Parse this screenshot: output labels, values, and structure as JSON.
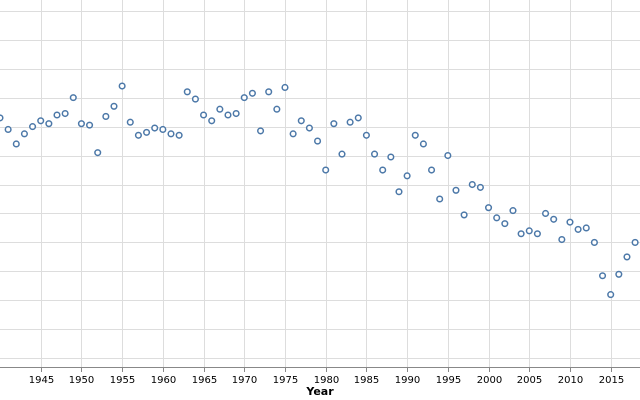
{
  "chart_data": {
    "type": "scatter",
    "xlabel": "Year",
    "ylabel": "",
    "title": "",
    "grid": true,
    "legend": "none",
    "point_color": "#4c78a8",
    "x_ticks": [
      1945,
      1950,
      1955,
      1960,
      1965,
      1970,
      1975,
      1980,
      1985,
      1990,
      1995,
      2000,
      2005,
      2010,
      2015
    ],
    "y_gridlines": [
      0,
      1,
      2,
      3,
      4,
      5,
      6,
      7,
      8,
      9,
      10,
      11,
      12
    ],
    "xlim": [
      1940,
      2018.6
    ],
    "ylim": [
      -0.3,
      12.37
    ],
    "x": [
      1940,
      1941,
      1942,
      1943,
      1944,
      1945,
      1946,
      1947,
      1948,
      1949,
      1950,
      1951,
      1952,
      1953,
      1954,
      1955,
      1956,
      1957,
      1958,
      1959,
      1960,
      1961,
      1962,
      1963,
      1964,
      1965,
      1966,
      1967,
      1968,
      1969,
      1970,
      1971,
      1972,
      1973,
      1974,
      1975,
      1976,
      1977,
      1978,
      1979,
      1980,
      1981,
      1982,
      1983,
      1984,
      1985,
      1986,
      1987,
      1988,
      1989,
      1990,
      1991,
      1992,
      1993,
      1994,
      1995,
      1996,
      1997,
      1998,
      1999,
      2000,
      2001,
      2002,
      2003,
      2004,
      2005,
      2006,
      2007,
      2008,
      2009,
      2010,
      2011,
      2012,
      2013,
      2014,
      2015,
      2016,
      2017,
      2018
    ],
    "y": [
      8.3,
      7.9,
      7.4,
      7.75,
      8.0,
      8.2,
      8.1,
      8.4,
      8.45,
      9.0,
      8.1,
      8.05,
      7.1,
      8.35,
      8.7,
      9.4,
      8.15,
      7.7,
      7.8,
      7.95,
      7.9,
      7.75,
      7.7,
      9.2,
      8.95,
      8.4,
      8.2,
      8.6,
      8.4,
      8.45,
      9.0,
      9.15,
      7.85,
      9.2,
      8.6,
      9.35,
      7.75,
      8.2,
      7.95,
      7.5,
      6.5,
      8.1,
      7.05,
      8.15,
      8.3,
      7.7,
      7.05,
      6.5,
      6.95,
      5.75,
      6.3,
      7.7,
      7.4,
      6.5,
      5.5,
      7.0,
      5.8,
      4.95,
      6.0,
      5.9,
      5.2,
      4.85,
      4.65,
      5.1,
      4.3,
      4.4,
      4.3,
      5.0,
      4.8,
      4.1,
      4.7,
      4.45,
      4.5,
      4.0,
      2.85,
      2.2,
      2.9,
      3.5,
      4.0
    ]
  }
}
